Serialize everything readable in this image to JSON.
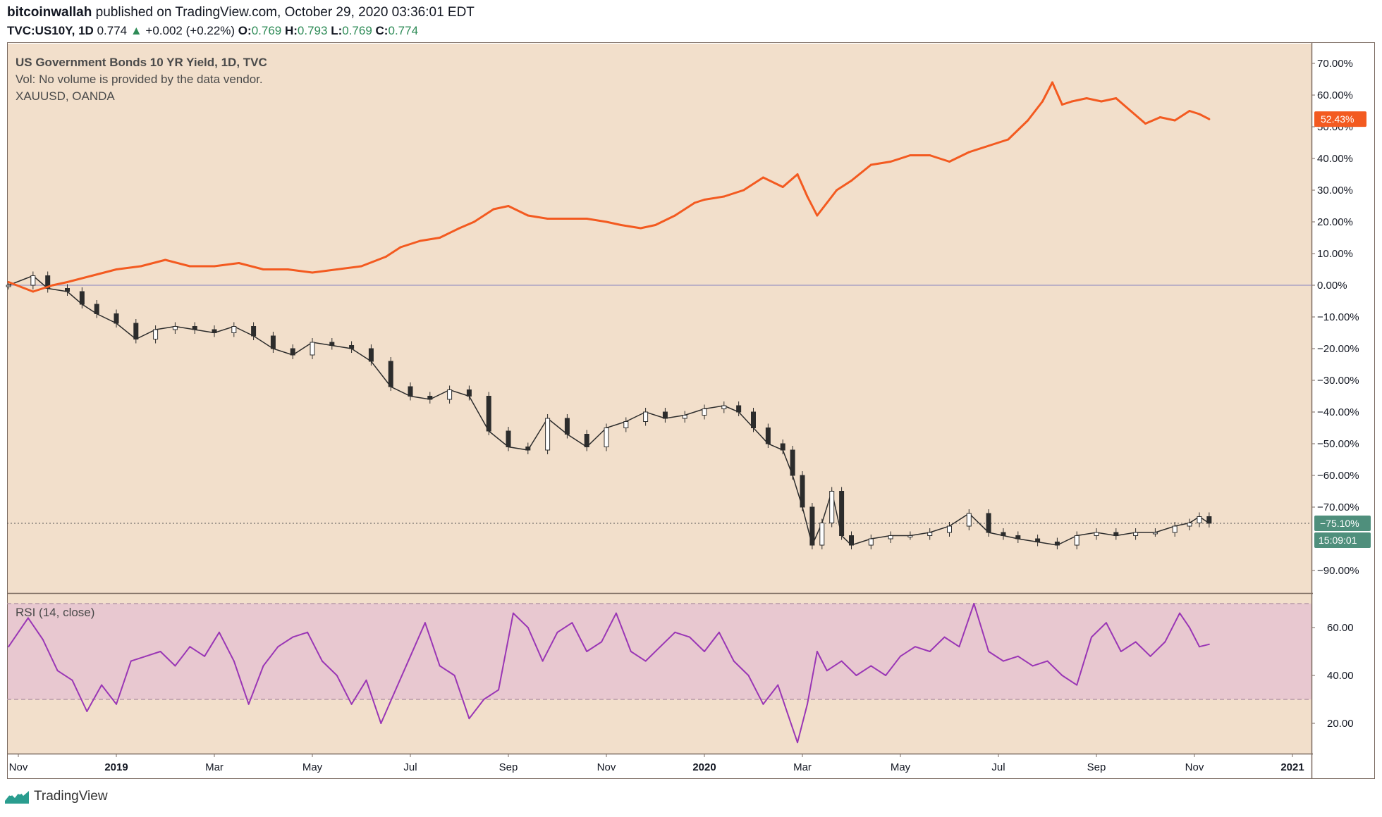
{
  "header": {
    "author": "bitcoinwallah",
    "published_text": "published on TradingView.com, October 29, 2020 03:36:01 EDT",
    "symbol": "TVC:US10Y, 1D",
    "last": "0.774",
    "change": "+0.002 (+0.22%)",
    "open_label": "O:",
    "open": "0.769",
    "high_label": "H:",
    "high": "0.793",
    "low_label": "L:",
    "low": "0.769",
    "close_label": "C:",
    "close": "0.774"
  },
  "legend": {
    "main": "US Government Bonds 10 YR Yield, 1D, TVC",
    "vol": "Vol: No volume is provided by the data vendor.",
    "compare": "XAUUSD, OANDA"
  },
  "rsi_label": "RSI (14, close)",
  "badges": {
    "gold_pct": "52.43%",
    "yield_pct": "−75.10%",
    "countdown": "15:09:01"
  },
  "footer": {
    "brand": "TradingView"
  },
  "colors": {
    "background": "#f2dfcb",
    "rsi_band": "#e8c8d0",
    "gold_line": "#f35a20",
    "candle": "#2c2c2c",
    "rsi_line": "#9a36b5",
    "badge_green": "#4f8f7c"
  },
  "chart_data": [
    {
      "type": "line",
      "title": "US Government Bonds 10 YR Yield, 1D, TVC",
      "y_axis": {
        "min": -90,
        "max": 70,
        "unit": "%",
        "ticks": [
          "70.00%",
          "60.00%",
          "50.00%",
          "40.00%",
          "30.00%",
          "20.00%",
          "10.00%",
          "0.00%",
          "−10.00%",
          "−20.00%",
          "−30.00%",
          "−40.00%",
          "−50.00%",
          "−60.00%",
          "−70.00%",
          "−90.00%"
        ],
        "tick_values": [
          70,
          60,
          50,
          40,
          30,
          20,
          10,
          0,
          -10,
          -20,
          -30,
          -40,
          -50,
          -60,
          -70,
          -90
        ],
        "position": "right"
      },
      "x_axis": {
        "ticks": [
          "Nov",
          "2019",
          "Mar",
          "May",
          "Jul",
          "Sep",
          "Nov",
          "2020",
          "Mar",
          "May",
          "Jul",
          "Sep",
          "Nov",
          "2021"
        ],
        "tick_month_index": [
          0,
          2,
          4,
          6,
          8,
          10,
          12,
          14,
          16,
          18,
          20,
          22,
          24,
          26
        ],
        "bold_ticks": [
          "2019",
          "2020",
          "2021"
        ],
        "range_month_index": [
          -0.2,
          26.9
        ]
      },
      "grid": false,
      "zero_line": true,
      "series": [
        {
          "name": "XAUUSD, OANDA",
          "style": "line",
          "x": [
            -0.2,
            0.3,
            0.7,
            1.0,
            1.5,
            2.0,
            2.5,
            3.0,
            3.5,
            4.0,
            4.5,
            5.0,
            5.5,
            6.0,
            6.5,
            7.0,
            7.5,
            7.8,
            8.2,
            8.6,
            9.0,
            9.3,
            9.7,
            10.0,
            10.4,
            10.8,
            11.2,
            11.6,
            12.0,
            12.3,
            12.7,
            13.0,
            13.4,
            13.8,
            14.0,
            14.4,
            14.8,
            15.2,
            15.6,
            15.9,
            16.1,
            16.3,
            16.5,
            16.7,
            17.0,
            17.4,
            17.8,
            18.2,
            18.6,
            19.0,
            19.4,
            19.8,
            20.2,
            20.6,
            20.9,
            21.1,
            21.3,
            21.5,
            21.8,
            22.1,
            22.4,
            22.7,
            23.0,
            23.3,
            23.6,
            23.9,
            24.1,
            24.3
          ],
          "values": [
            1,
            -2,
            0,
            1,
            3,
            5,
            6,
            8,
            6,
            6,
            7,
            5,
            5,
            4,
            5,
            6,
            9,
            12,
            14,
            15,
            18,
            20,
            24,
            25,
            22,
            21,
            21,
            21,
            20,
            19,
            18,
            19,
            22,
            26,
            27,
            28,
            30,
            34,
            31,
            35,
            28,
            22,
            26,
            30,
            33,
            38,
            39,
            41,
            41,
            39,
            42,
            44,
            46,
            52,
            58,
            64,
            57,
            58,
            59,
            58,
            59,
            55,
            51,
            53,
            52,
            55,
            54,
            52.43
          ]
        },
        {
          "name": "US Government Bonds 10 YR Yield",
          "style": "candles",
          "x": [
            -0.2,
            0.3,
            0.6,
            1.0,
            1.3,
            1.6,
            2.0,
            2.4,
            2.8,
            3.2,
            3.6,
            4.0,
            4.4,
            4.8,
            5.2,
            5.6,
            6.0,
            6.4,
            6.8,
            7.2,
            7.6,
            8.0,
            8.4,
            8.8,
            9.2,
            9.6,
            10.0,
            10.4,
            10.8,
            11.2,
            11.6,
            12.0,
            12.4,
            12.8,
            13.2,
            13.6,
            14.0,
            14.4,
            14.7,
            15.0,
            15.3,
            15.6,
            15.8,
            16.0,
            16.2,
            16.4,
            16.6,
            16.8,
            17.0,
            17.4,
            17.8,
            18.2,
            18.6,
            19.0,
            19.4,
            19.8,
            20.1,
            20.4,
            20.8,
            21.2,
            21.6,
            22.0,
            22.4,
            22.8,
            23.2,
            23.6,
            23.9,
            24.1,
            24.3
          ],
          "values": [
            0,
            3,
            -1,
            -2,
            -6,
            -9,
            -12,
            -17,
            -14,
            -13,
            -14,
            -15,
            -13,
            -16,
            -20,
            -22,
            -18,
            -19,
            -20,
            -24,
            -32,
            -35,
            -36,
            -33,
            -35,
            -46,
            -51,
            -52,
            -42,
            -47,
            -51,
            -45,
            -43,
            -40,
            -42,
            -41,
            -39,
            -38,
            -40,
            -45,
            -50,
            -52,
            -60,
            -70,
            -82,
            -75,
            -65,
            -79,
            -82,
            -80,
            -79,
            -79,
            -78,
            -76,
            -72,
            -78,
            -79,
            -80,
            -81,
            -82,
            -79,
            -78,
            -79,
            -78,
            -78,
            -76,
            -75,
            -73,
            -75.1
          ]
        }
      ]
    },
    {
      "type": "line",
      "title": "RSI (14, close)",
      "y_axis": {
        "ticks": [
          "60.00",
          "40.00",
          "20.00"
        ],
        "tick_values": [
          60,
          40,
          20
        ],
        "min": 10,
        "max": 72,
        "band": [
          30,
          70
        ],
        "position": "right"
      },
      "series": [
        {
          "name": "RSI (14, close)",
          "x": [
            -0.2,
            0.2,
            0.5,
            0.8,
            1.1,
            1.4,
            1.7,
            2.0,
            2.3,
            2.6,
            2.9,
            3.2,
            3.5,
            3.8,
            4.1,
            4.4,
            4.7,
            5.0,
            5.3,
            5.6,
            5.9,
            6.2,
            6.5,
            6.8,
            7.1,
            7.4,
            7.7,
            8.0,
            8.3,
            8.6,
            8.9,
            9.2,
            9.5,
            9.8,
            10.1,
            10.4,
            10.7,
            11.0,
            11.3,
            11.6,
            11.9,
            12.2,
            12.5,
            12.8,
            13.1,
            13.4,
            13.7,
            14.0,
            14.3,
            14.6,
            14.9,
            15.2,
            15.5,
            15.7,
            15.9,
            16.1,
            16.3,
            16.5,
            16.8,
            17.1,
            17.4,
            17.7,
            18.0,
            18.3,
            18.6,
            18.9,
            19.2,
            19.5,
            19.8,
            20.1,
            20.4,
            20.7,
            21.0,
            21.3,
            21.6,
            21.9,
            22.2,
            22.5,
            22.8,
            23.1,
            23.4,
            23.7,
            23.9,
            24.1,
            24.3
          ],
          "values": [
            52,
            64,
            55,
            42,
            38,
            25,
            36,
            28,
            46,
            48,
            50,
            44,
            52,
            48,
            58,
            46,
            28,
            44,
            52,
            56,
            58,
            46,
            40,
            28,
            38,
            20,
            34,
            48,
            62,
            44,
            40,
            22,
            30,
            34,
            66,
            60,
            46,
            58,
            62,
            50,
            54,
            66,
            50,
            46,
            52,
            58,
            56,
            50,
            58,
            46,
            40,
            28,
            36,
            24,
            12,
            28,
            50,
            42,
            46,
            40,
            44,
            40,
            48,
            52,
            50,
            56,
            52,
            70,
            50,
            46,
            48,
            44,
            46,
            40,
            36,
            56,
            62,
            50,
            54,
            48,
            54,
            66,
            60,
            52,
            53
          ]
        }
      ]
    }
  ]
}
